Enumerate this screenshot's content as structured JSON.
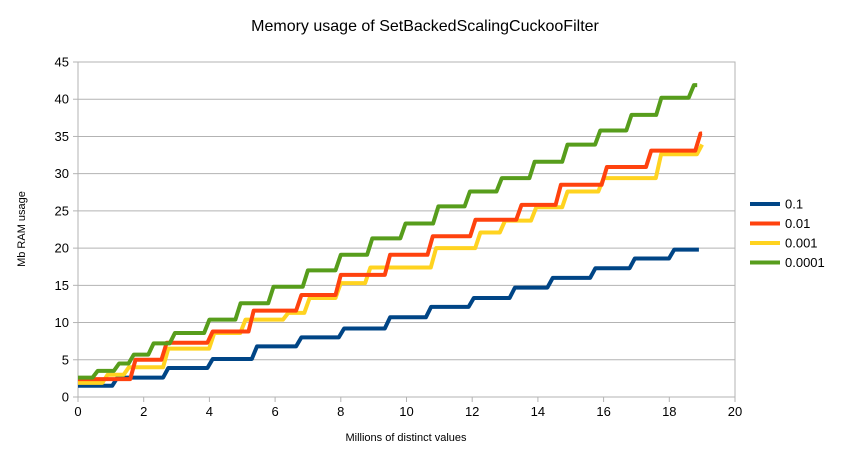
{
  "chart_data": {
    "type": "line-step",
    "title": "Memory usage of SetBackedScalingCuckooFilter",
    "xlabel": "Millions of distinct values",
    "ylabel": "Mb RAM usage",
    "xlim": [
      0,
      20
    ],
    "ylim": [
      0,
      45
    ],
    "xticks": [
      0,
      2,
      4,
      6,
      8,
      10,
      12,
      14,
      16,
      18,
      20
    ],
    "yticks": [
      0,
      5,
      10,
      15,
      20,
      25,
      30,
      35,
      40,
      45
    ],
    "grid": "horizontal",
    "legend_position": "right",
    "axis_color": "#b3b3b3",
    "series": [
      {
        "name": "0.1",
        "color": "#004586",
        "start": 1.5,
        "end_x": 18.9,
        "steps": [
          [
            1.1,
            2.6
          ],
          [
            2.65,
            3.9
          ],
          [
            4.0,
            5.1
          ],
          [
            5.35,
            6.8
          ],
          [
            6.7,
            8.0
          ],
          [
            8.0,
            9.2
          ],
          [
            9.4,
            10.7
          ],
          [
            10.65,
            12.1
          ],
          [
            11.95,
            13.3
          ],
          [
            13.2,
            14.7
          ],
          [
            14.35,
            16.0
          ],
          [
            15.65,
            17.3
          ],
          [
            16.85,
            18.6
          ],
          [
            18.05,
            19.8
          ]
        ]
      },
      {
        "name": "0.01",
        "color": "#ff420e",
        "start": 2.4,
        "end_x": 19.0,
        "steps": [
          [
            1.65,
            5.0
          ],
          [
            2.6,
            7.3
          ],
          [
            4.0,
            8.8
          ],
          [
            5.25,
            11.6
          ],
          [
            6.7,
            13.7
          ],
          [
            7.9,
            16.4
          ],
          [
            9.4,
            19.1
          ],
          [
            10.7,
            21.6
          ],
          [
            12.0,
            23.8
          ],
          [
            13.4,
            25.8
          ],
          [
            14.6,
            28.5
          ],
          [
            16.0,
            30.9
          ],
          [
            17.35,
            33.1
          ],
          [
            18.85,
            35.4
          ]
        ]
      },
      {
        "name": "0.001",
        "color": "#ffd320",
        "start": 1.9,
        "end_x": 19.0,
        "steps": [
          [
            0.8,
            3.0
          ],
          [
            1.45,
            4.0
          ],
          [
            2.65,
            6.5
          ],
          [
            4.05,
            8.6
          ],
          [
            5.0,
            10.4
          ],
          [
            6.3,
            11.3
          ],
          [
            6.95,
            13.3
          ],
          [
            7.9,
            15.3
          ],
          [
            8.8,
            17.4
          ],
          [
            10.8,
            20.0
          ],
          [
            12.15,
            22.1
          ],
          [
            12.9,
            23.7
          ],
          [
            13.85,
            25.5
          ],
          [
            14.8,
            27.6
          ],
          [
            15.9,
            29.4
          ],
          [
            17.65,
            32.6
          ],
          [
            18.9,
            33.9
          ]
        ]
      },
      {
        "name": "0.0001",
        "color": "#579d1c",
        "start": 2.6,
        "end_x": 18.85,
        "steps": [
          [
            0.5,
            3.5
          ],
          [
            1.15,
            4.5
          ],
          [
            1.6,
            5.7
          ],
          [
            2.2,
            7.2
          ],
          [
            2.85,
            8.6
          ],
          [
            3.9,
            10.4
          ],
          [
            4.85,
            12.6
          ],
          [
            5.85,
            14.8
          ],
          [
            6.9,
            17.0
          ],
          [
            7.9,
            19.1
          ],
          [
            8.86,
            21.3
          ],
          [
            9.87,
            23.3
          ],
          [
            10.87,
            25.6
          ],
          [
            11.83,
            27.6
          ],
          [
            12.8,
            29.4
          ],
          [
            13.8,
            31.6
          ],
          [
            14.8,
            33.9
          ],
          [
            15.8,
            35.8
          ],
          [
            16.75,
            37.9
          ],
          [
            17.66,
            40.2
          ],
          [
            18.65,
            41.9
          ]
        ]
      }
    ]
  }
}
